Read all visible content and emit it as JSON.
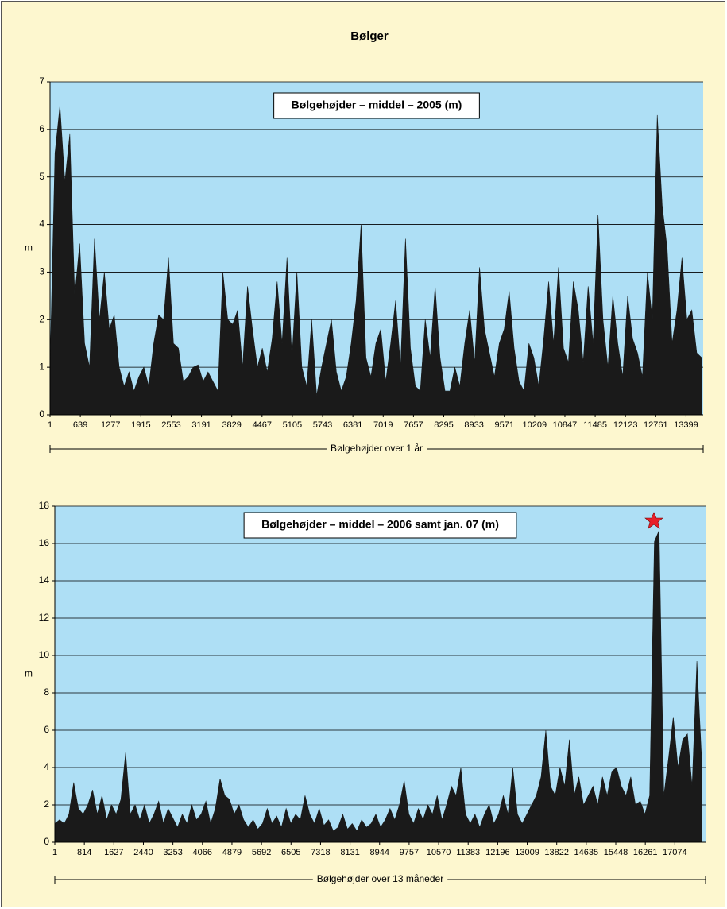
{
  "title": "Bølger",
  "chart_data": [
    {
      "type": "area",
      "title": "Bølgehøjder – middel – 2005   (m)",
      "y_label": "m",
      "x_label": "Bølgehøjder over 1 år",
      "color": "#1a1a1a",
      "background": "#aedff5",
      "grid": true,
      "xlim": [
        1,
        13760
      ],
      "xticks": [
        1,
        639,
        1277,
        1915,
        2553,
        3191,
        3829,
        4467,
        5105,
        5743,
        6381,
        7019,
        7657,
        8295,
        8933,
        9571,
        10209,
        10847,
        11485,
        12123,
        12761,
        13399
      ],
      "ylim": [
        0,
        7
      ],
      "yticks": [
        0,
        1,
        2,
        3,
        4,
        5,
        6,
        7
      ],
      "x": [
        1,
        105,
        209,
        313,
        417,
        521,
        625,
        729,
        833,
        937,
        1041,
        1145,
        1249,
        1353,
        1457,
        1561,
        1665,
        1769,
        1873,
        1977,
        2081,
        2185,
        2289,
        2393,
        2497,
        2601,
        2705,
        2809,
        2913,
        3017,
        3121,
        3225,
        3329,
        3433,
        3537,
        3641,
        3745,
        3849,
        3953,
        4057,
        4161,
        4265,
        4369,
        4473,
        4577,
        4681,
        4785,
        4889,
        4993,
        5097,
        5201,
        5305,
        5409,
        5513,
        5617,
        5721,
        5825,
        5929,
        6033,
        6137,
        6241,
        6345,
        6449,
        6553,
        6657,
        6761,
        6865,
        6969,
        7073,
        7177,
        7281,
        7385,
        7489,
        7593,
        7697,
        7801,
        7905,
        8009,
        8113,
        8217,
        8321,
        8425,
        8529,
        8633,
        8737,
        8841,
        8945,
        9049,
        9153,
        9257,
        9361,
        9465,
        9569,
        9673,
        9777,
        9881,
        9985,
        10089,
        10193,
        10297,
        10401,
        10505,
        10609,
        10713,
        10817,
        10921,
        11025,
        11129,
        11233,
        11337,
        11441,
        11545,
        11649,
        11753,
        11857,
        11961,
        12065,
        12169,
        12273,
        12377,
        12481,
        12585,
        12689,
        12793,
        12897,
        13001,
        13105,
        13209,
        13313,
        13417,
        13521,
        13625,
        13729
      ],
      "values": [
        1.0,
        5.5,
        6.5,
        4.9,
        5.9,
        2.5,
        3.6,
        1.5,
        1.0,
        3.7,
        2.0,
        3.0,
        1.8,
        2.1,
        1.0,
        0.6,
        0.9,
        0.5,
        0.8,
        1.0,
        0.6,
        1.5,
        2.1,
        2.0,
        3.3,
        1.5,
        1.4,
        0.7,
        0.8,
        1.0,
        1.05,
        0.7,
        0.9,
        0.7,
        0.5,
        3.0,
        2.0,
        1.9,
        2.2,
        1.0,
        2.7,
        1.8,
        1.0,
        1.4,
        0.9,
        1.6,
        2.8,
        1.5,
        3.3,
        1.2,
        3.0,
        1.0,
        0.6,
        2.0,
        0.4,
        1.0,
        1.5,
        2.0,
        0.9,
        0.5,
        0.8,
        1.5,
        2.4,
        4.0,
        1.2,
        0.8,
        1.5,
        1.8,
        0.7,
        1.5,
        2.4,
        1.0,
        3.7,
        1.4,
        0.6,
        0.5,
        2.0,
        1.2,
        2.7,
        1.2,
        0.5,
        0.5,
        1.0,
        0.6,
        1.5,
        2.2,
        1.1,
        3.1,
        1.8,
        1.3,
        0.8,
        1.5,
        1.8,
        2.6,
        1.4,
        0.7,
        0.5,
        1.5,
        1.2,
        0.6,
        1.6,
        2.8,
        1.5,
        3.1,
        1.4,
        1.1,
        2.8,
        2.2,
        1.1,
        2.7,
        1.5,
        4.2,
        2.0,
        1.0,
        2.5,
        1.5,
        0.8,
        2.5,
        1.6,
        1.3,
        0.8,
        3.0,
        2.0,
        6.3,
        4.4,
        3.5,
        1.5,
        2.2,
        3.3,
        2.0,
        2.2,
        1.3,
        1.2
      ]
    },
    {
      "type": "area",
      "title": "Bølgehøjder – middel – 2006 samt jan. 07   (m)",
      "y_label": "m",
      "x_label": "Bølgehøjder over 13 måneder",
      "color": "#1a1a1a",
      "background": "#aedff5",
      "grid": true,
      "xlim": [
        1,
        17920
      ],
      "xticks": [
        1,
        814,
        1627,
        2440,
        3253,
        4066,
        4879,
        5692,
        6505,
        7318,
        8131,
        8944,
        9757,
        10570,
        11383,
        12196,
        13009,
        13822,
        14635,
        15448,
        16261,
        17074
      ],
      "ylim": [
        0,
        18
      ],
      "yticks": [
        0,
        2,
        4,
        6,
        8,
        10,
        12,
        14,
        16,
        18
      ],
      "x": [
        1,
        131,
        261,
        391,
        521,
        651,
        781,
        911,
        1041,
        1171,
        1301,
        1431,
        1561,
        1691,
        1821,
        1951,
        2081,
        2211,
        2341,
        2471,
        2601,
        2731,
        2861,
        2991,
        3121,
        3251,
        3381,
        3511,
        3641,
        3771,
        3901,
        4031,
        4161,
        4291,
        4421,
        4551,
        4681,
        4811,
        4941,
        5071,
        5201,
        5331,
        5461,
        5591,
        5721,
        5851,
        5981,
        6111,
        6241,
        6371,
        6501,
        6631,
        6761,
        6891,
        7021,
        7151,
        7281,
        7411,
        7541,
        7671,
        7801,
        7931,
        8061,
        8191,
        8321,
        8451,
        8581,
        8711,
        8841,
        8971,
        9101,
        9231,
        9361,
        9491,
        9621,
        9751,
        9881,
        10011,
        10141,
        10271,
        10401,
        10531,
        10661,
        10791,
        10921,
        11051,
        11181,
        11311,
        11441,
        11571,
        11701,
        11831,
        11961,
        12091,
        12221,
        12351,
        12481,
        12611,
        12741,
        12871,
        13001,
        13131,
        13261,
        13391,
        13521,
        13651,
        13781,
        13911,
        14041,
        14171,
        14301,
        14431,
        14561,
        14691,
        14821,
        14951,
        15081,
        15211,
        15341,
        15471,
        15601,
        15731,
        15861,
        15991,
        16121,
        16251,
        16381,
        16511,
        16641,
        16771,
        16901,
        17031,
        17161,
        17291,
        17421,
        17551,
        17681,
        17811
      ],
      "values": [
        1.0,
        1.2,
        1.0,
        1.5,
        3.2,
        1.8,
        1.5,
        2.0,
        2.8,
        1.5,
        2.5,
        1.2,
        2.0,
        1.5,
        2.3,
        4.8,
        1.5,
        2.0,
        1.2,
        2.0,
        1.0,
        1.5,
        2.2,
        1.0,
        1.8,
        1.3,
        0.8,
        1.5,
        1.0,
        2.0,
        1.2,
        1.5,
        2.2,
        1.0,
        1.8,
        3.4,
        2.5,
        2.3,
        1.5,
        2.0,
        1.2,
        0.8,
        1.2,
        0.7,
        1.0,
        1.8,
        1.0,
        1.4,
        0.8,
        1.8,
        1.0,
        1.5,
        1.2,
        2.5,
        1.5,
        1.0,
        1.8,
        0.9,
        1.2,
        0.6,
        0.8,
        1.5,
        0.7,
        1.0,
        0.6,
        1.2,
        0.8,
        1.0,
        1.5,
        0.8,
        1.2,
        1.8,
        1.2,
        2.0,
        3.3,
        1.5,
        1.0,
        1.8,
        1.2,
        2.0,
        1.5,
        2.5,
        1.2,
        2.0,
        3.0,
        2.5,
        4.0,
        1.5,
        1.0,
        1.5,
        0.8,
        1.5,
        2.0,
        1.0,
        1.5,
        2.5,
        1.5,
        4.0,
        1.5,
        1.0,
        1.5,
        2.0,
        2.5,
        3.5,
        6.0,
        3.0,
        2.5,
        4.0,
        3.0,
        5.5,
        2.5,
        3.5,
        2.0,
        2.5,
        3.0,
        2.0,
        3.5,
        2.5,
        3.8,
        4.0,
        3.0,
        2.5,
        3.5,
        2.0,
        2.2,
        1.5,
        2.5,
        16.1,
        16.7,
        2.5,
        4.5,
        6.7,
        4.0,
        5.5,
        5.8,
        3.0,
        9.7,
        4.5
      ]
    }
  ]
}
